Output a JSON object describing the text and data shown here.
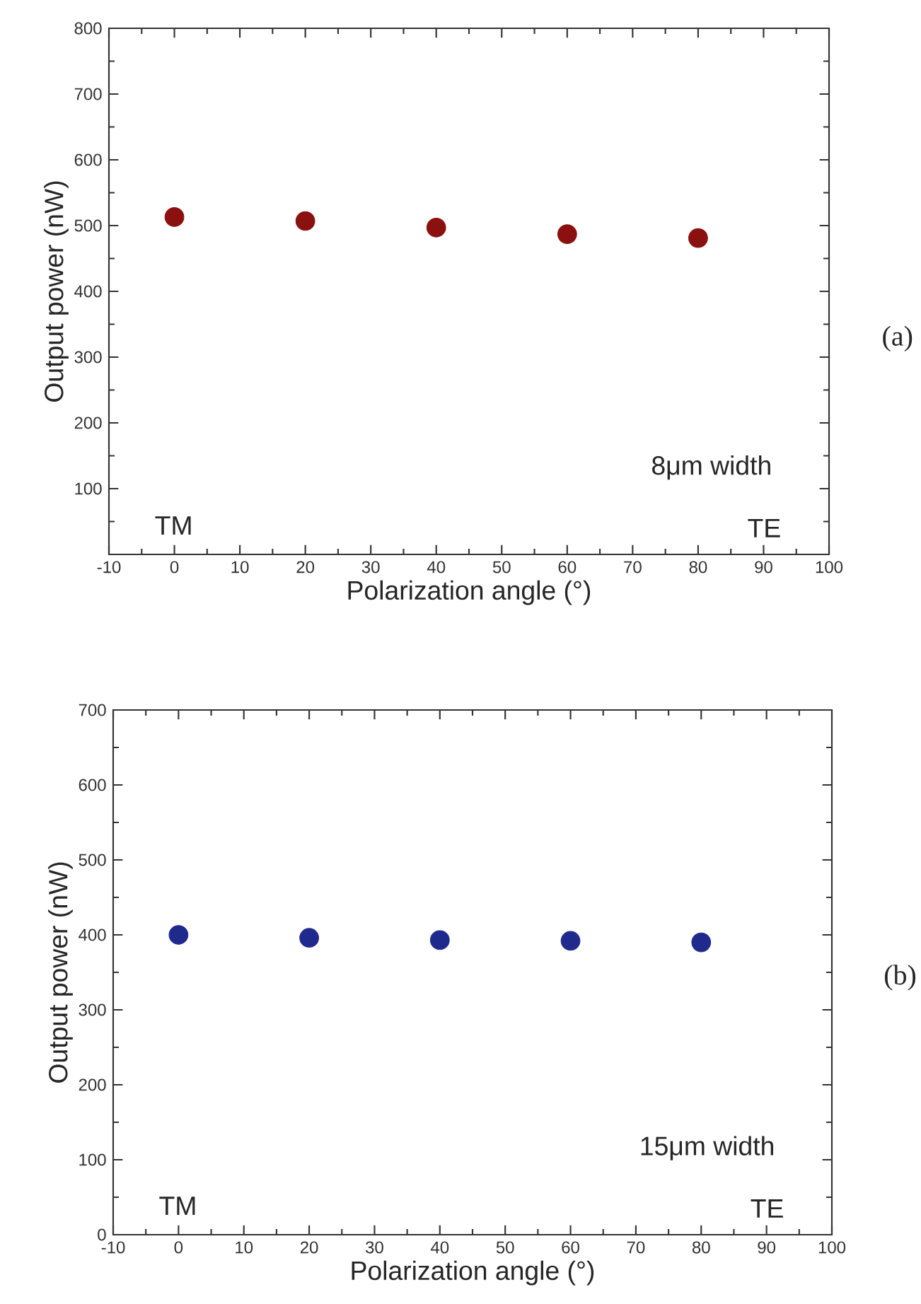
{
  "chart_data": [
    {
      "type": "scatter",
      "xlabel": "Polarization angle (°)",
      "ylabel": "Output power (nW)",
      "x": [
        0,
        20,
        40,
        60,
        80
      ],
      "series": [
        {
          "color": "#8b1010",
          "values": [
            513,
            507,
            497,
            487,
            481
          ]
        }
      ],
      "xlim": [
        -10,
        100
      ],
      "xticks": [
        -10,
        0,
        10,
        20,
        30,
        40,
        50,
        60,
        70,
        80,
        90,
        100
      ],
      "ylim": [
        0,
        800
      ],
      "yticks": [
        {
          "value": 0,
          "label": null
        },
        100,
        200,
        300,
        400,
        500,
        600,
        700,
        800
      ],
      "annotations": [
        "8μm width",
        "TM",
        "TE",
        "(a)"
      ],
      "grid": false
    },
    {
      "type": "scatter",
      "xlabel": "Polarization angle (°)",
      "ylabel": "Output power (nW)",
      "x": [
        0,
        20,
        40,
        60,
        80
      ],
      "series": [
        {
          "color": "#1f2a8c",
          "values": [
            400,
            396,
            393,
            392,
            390
          ]
        }
      ],
      "xlim": [
        -10,
        100
      ],
      "xticks": [
        -10,
        0,
        10,
        20,
        30,
        40,
        50,
        60,
        70,
        80,
        90,
        100
      ],
      "ylim": [
        0,
        700
      ],
      "yticks": [
        0,
        100,
        200,
        300,
        400,
        500,
        600,
        700
      ],
      "annotations": [
        "15μm width",
        "TM",
        "TE",
        "(b)"
      ],
      "grid": false
    }
  ]
}
